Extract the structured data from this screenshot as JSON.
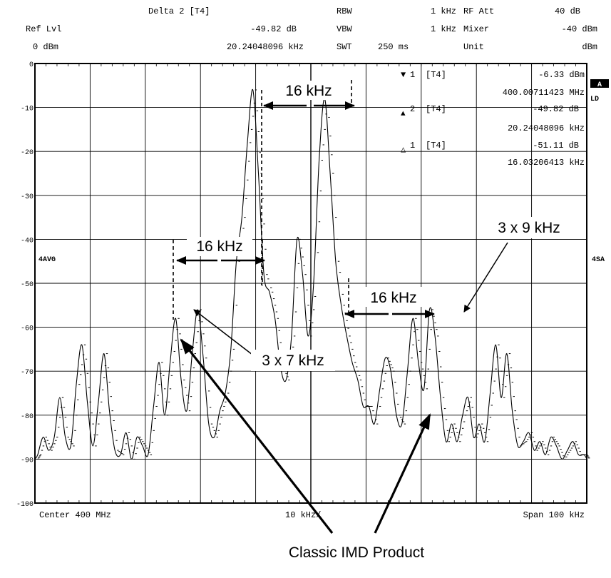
{
  "header": {
    "row1": {
      "delta_label": "Delta 2 [T4]",
      "rbw_label": "RBW",
      "rbw_value": "1 kHz",
      "rfatt_label": "RF Att",
      "rfatt_value": "40 dB"
    },
    "row2": {
      "reflvl_label": "Ref Lvl",
      "delta_level": "-49.82 dB",
      "vbw_label": "VBW",
      "vbw_value": "1 kHz",
      "mixer_label": "Mixer",
      "mixer_value": "-40 dBm"
    },
    "row3": {
      "reflvl_value": "0 dBm",
      "delta_freq": "20.24048096 kHz",
      "swt_label": "SWT",
      "swt_value": "250 ms",
      "unit_label": "Unit",
      "unit_value": "dBm"
    }
  },
  "markers": [
    {
      "symbol": "▼",
      "index": "1",
      "trace": "[T4]",
      "level": "-6.33 dBm",
      "freq": "400.00711423 MHz"
    },
    {
      "symbol": "▲",
      "index": "2",
      "trace": "[T4]",
      "level": "-49.82 dB",
      "freq": "20.24048096 kHz"
    },
    {
      "symbol": "△",
      "index": "1",
      "trace": "[T4]",
      "level": "-51.11 dB",
      "freq": "16.03206413 kHz"
    }
  ],
  "side_labels": {
    "a": "A",
    "ld": "LD",
    "avg": "4AVG",
    "sa": "4SA"
  },
  "annotations": {
    "gap_top": "16 kHz",
    "gap_left": "16 kHz",
    "gap_right": "16 kHz",
    "third_order_7": "3 x 7 kHz",
    "third_order_9": "3 x 9 kHz",
    "classic": "Classic IMD Product"
  },
  "colors": {
    "trace": "#000000",
    "grid": "#000000",
    "background": "#ffffff"
  },
  "chart_data": {
    "type": "line",
    "title": "",
    "xlabel": "",
    "ylabel": "",
    "center_label": "Center 400 MHz",
    "div_label": "10 kHz/",
    "span_label": "Span 100 kHz",
    "x_unit": "kHz offset from center",
    "xlim": [
      -50,
      50
    ],
    "ylim": [
      -100,
      0
    ],
    "grid": true,
    "yticks": [
      0,
      -10,
      -20,
      -30,
      -40,
      -50,
      -60,
      -70,
      -80,
      -90,
      -100
    ],
    "series": [
      {
        "x": [
          -50,
          -49.5,
          -48.5,
          -47.5,
          -46.5,
          -45.5,
          -44.5,
          -43.5,
          -42.5,
          -41.5,
          -40.5,
          -39.5,
          -38.5,
          -37.5,
          -36.5,
          -35.5,
          -34.5,
          -33.5,
          -32.5,
          -31.5,
          -30.5,
          -29.5,
          -28.5,
          -27.5,
          -26.5,
          -25.5,
          -24.5,
          -23.5,
          -22.5,
          -21.5,
          -20.5,
          -19.5,
          -18.5,
          -17.5,
          -16.5,
          -15.5,
          -14.5,
          -13.5,
          -12.5,
          -11.5,
          -10.5,
          -9.5,
          -8.5,
          -7.5,
          -6.5,
          -5.5,
          -4.5,
          -3.5,
          -2.5,
          -1.5,
          -0.5,
          0.5,
          1.5,
          2.5,
          3.5,
          4.5,
          5.5,
          6.5,
          7.5,
          8.5,
          9.5,
          10.5,
          11.5,
          12.5,
          13.5,
          14.5,
          15.5,
          16.5,
          17.5,
          18.5,
          19.5,
          20.5,
          21.5,
          22.5,
          23.5,
          24.5,
          25.5,
          26.5,
          27.5,
          28.5,
          29.5,
          30.5,
          31.5,
          32.5,
          33.5,
          34.5,
          35.5,
          36.5,
          37.5,
          38.5,
          39.5,
          40.5,
          41.5,
          42.5,
          43.5,
          44.5,
          45.5,
          46.5,
          47.5,
          48.5,
          49.5,
          50
        ],
        "y": [
          -90,
          -89,
          -85,
          -88,
          -85,
          -76,
          -85,
          -87,
          -73,
          -64,
          -77,
          -87,
          -77,
          -66,
          -79,
          -88,
          -89,
          -84,
          -90,
          -85,
          -87,
          -89,
          -78,
          -68,
          -80,
          -68,
          -58,
          -72,
          -79,
          -66,
          -56,
          -67,
          -82,
          -85,
          -79,
          -75,
          -65,
          -45,
          -35,
          -18,
          -6,
          -25,
          -48,
          -52,
          -58,
          -69,
          -72,
          -62,
          -40,
          -48,
          -62,
          -50,
          -22,
          -8,
          -25,
          -45,
          -55,
          -62,
          -68,
          -72,
          -78,
          -78,
          -82,
          -74,
          -67,
          -70,
          -80,
          -82,
          -70,
          -58,
          -68,
          -74,
          -56,
          -62,
          -76,
          -86,
          -82,
          -86,
          -80,
          -76,
          -85,
          -82,
          -86,
          -75,
          -64,
          -76,
          -66,
          -79,
          -87,
          -86,
          -84,
          -88,
          -86,
          -89,
          -85,
          -87,
          -90,
          -88,
          -86,
          -89,
          -89,
          -90
        ]
      }
    ]
  }
}
